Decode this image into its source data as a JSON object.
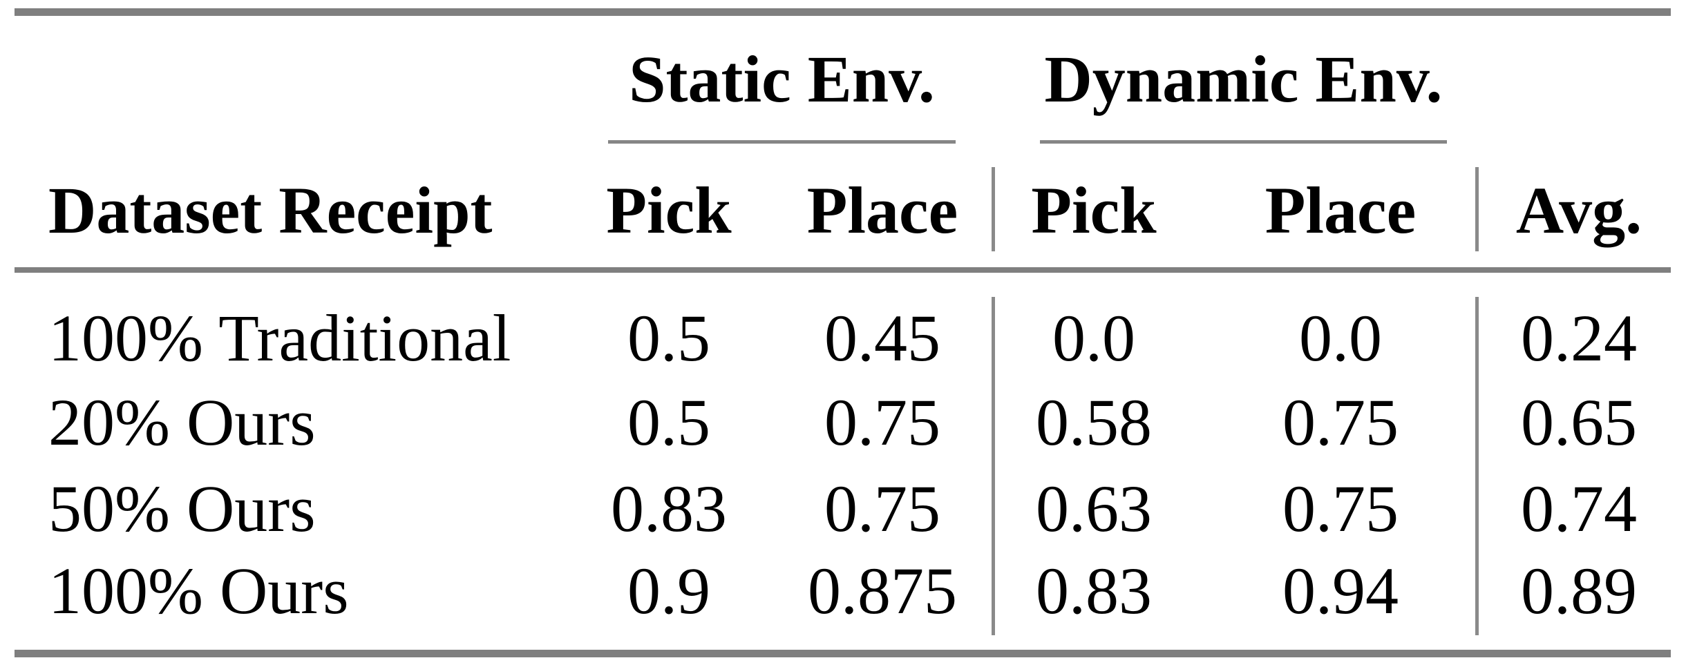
{
  "table": {
    "groups": {
      "static": {
        "label": "Static Env."
      },
      "dynamic": {
        "label": "Dynamic Env."
      }
    },
    "headers": {
      "dataset": "Dataset Receipt",
      "static_pick": "Pick",
      "static_place": "Place",
      "dynamic_pick": "Pick",
      "dynamic_place": "Place",
      "avg": "Avg."
    },
    "rows": [
      {
        "dataset": "100% Traditional",
        "static_pick": "0.5",
        "static_place": "0.45",
        "dynamic_pick": "0.0",
        "dynamic_place": "0.0",
        "avg": "0.24"
      },
      {
        "dataset": "20% Ours",
        "static_pick": "0.5",
        "static_place": "0.75",
        "dynamic_pick": "0.58",
        "dynamic_place": "0.75",
        "avg": "0.65"
      },
      {
        "dataset": "50% Ours",
        "static_pick": "0.83",
        "static_place": "0.75",
        "dynamic_pick": "0.63",
        "dynamic_place": "0.75",
        "avg": "0.74"
      },
      {
        "dataset": "100% Ours",
        "static_pick": "0.9",
        "static_place": "0.875",
        "dynamic_pick": "0.83",
        "dynamic_place": "0.94",
        "avg": "0.89"
      }
    ],
    "style": {
      "rule_color": "#7f7f7f",
      "vertical_rule_color": "#8a8a8a",
      "text_color": "#000000",
      "background_color": "#ffffff"
    }
  },
  "chart_data": {
    "type": "table",
    "title": "",
    "column_groups": [
      {
        "label": "Static Env.",
        "columns": [
          "Pick",
          "Place"
        ]
      },
      {
        "label": "Dynamic Env.",
        "columns": [
          "Pick",
          "Place"
        ]
      }
    ],
    "columns": [
      "Dataset Receipt",
      "Static Env. Pick",
      "Static Env. Place",
      "Dynamic Env. Pick",
      "Dynamic Env. Place",
      "Avg."
    ],
    "rows": [
      [
        "100% Traditional",
        0.5,
        0.45,
        0.0,
        0.0,
        0.24
      ],
      [
        "20% Ours",
        0.5,
        0.75,
        0.58,
        0.75,
        0.65
      ],
      [
        "50% Ours",
        0.83,
        0.75,
        0.63,
        0.75,
        0.74
      ],
      [
        "100% Ours",
        0.9,
        0.875,
        0.83,
        0.94,
        0.89
      ]
    ]
  }
}
